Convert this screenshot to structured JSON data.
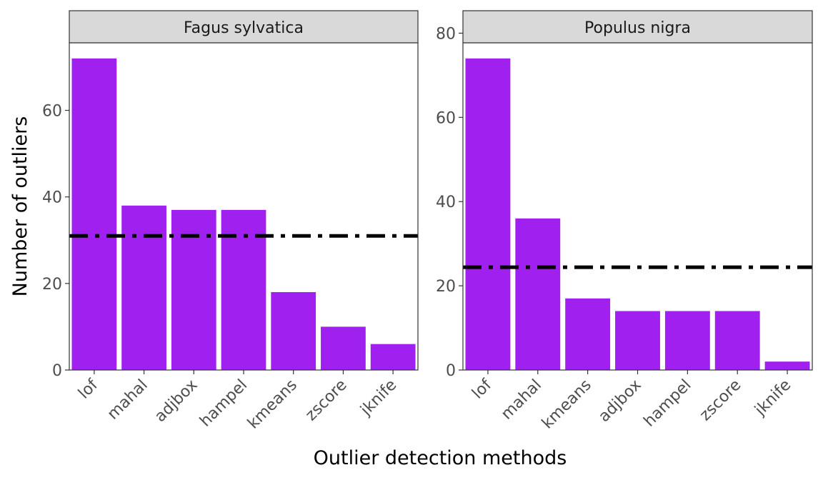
{
  "chart_data": {
    "type": "bar",
    "xlabel": "Outlier detection methods",
    "ylabel": "Number of outliers",
    "bar_color": "#A020F0",
    "reference_line_style": "dash-dot",
    "reference_line_color": "#000000",
    "panels": [
      {
        "title": "Fagus sylvatica",
        "categories": [
          "lof",
          "mahal",
          "adjbox",
          "hampel",
          "kmeans",
          "zscore",
          "jknife"
        ],
        "values": [
          72,
          38,
          37,
          37,
          18,
          10,
          6
        ],
        "reference_line": 31,
        "ylim": [
          0,
          75.6
        ],
        "yticks": [
          0,
          20,
          40,
          60
        ]
      },
      {
        "title": "Populus nigra",
        "categories": [
          "lof",
          "mahal",
          "kmeans",
          "adjbox",
          "hampel",
          "zscore",
          "jknife"
        ],
        "values": [
          74,
          36,
          17,
          14,
          14,
          14,
          2
        ],
        "reference_line": 24.4,
        "ylim": [
          0,
          77.7
        ],
        "yticks": [
          0,
          20,
          40,
          60,
          80
        ]
      }
    ]
  }
}
